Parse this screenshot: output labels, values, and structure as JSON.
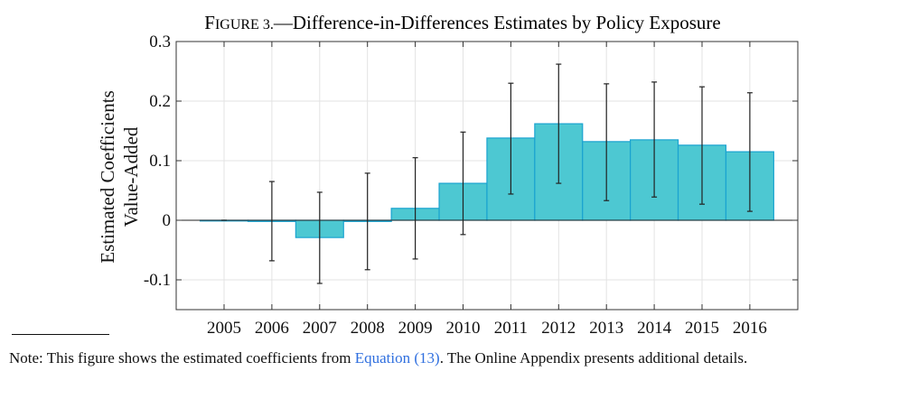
{
  "chart_data": {
    "type": "bar",
    "title_prefix": "Figure 3.",
    "title": "Difference-in-Differences Estimates by Policy Exposure",
    "xlabel": "",
    "ylabel": [
      "Estimated Coefficients",
      "Value-Added"
    ],
    "categories": [
      "2005",
      "2006",
      "2007",
      "2008",
      "2009",
      "2010",
      "2011",
      "2012",
      "2013",
      "2014",
      "2015",
      "2016"
    ],
    "values": [
      0.0,
      -0.002,
      -0.029,
      -0.002,
      0.02,
      0.062,
      0.138,
      0.162,
      0.132,
      0.135,
      0.126,
      0.115
    ],
    "ci_low": [
      0.0,
      -0.068,
      -0.106,
      -0.083,
      -0.065,
      -0.024,
      0.044,
      0.062,
      0.033,
      0.039,
      0.027,
      0.015
    ],
    "ci_high": [
      0.0,
      0.065,
      0.047,
      0.079,
      0.105,
      0.148,
      0.23,
      0.262,
      0.229,
      0.232,
      0.224,
      0.214
    ],
    "ylim": [
      -0.15,
      0.3
    ],
    "yticks": [
      -0.1,
      0,
      0.1,
      0.2,
      0.3
    ],
    "ytick_labels": [
      "-0.1",
      "0",
      "0.1",
      "0.2",
      "0.3"
    ],
    "grid": true,
    "bar_color": "#4dc8d2",
    "bar_edge_color": "#1aa3d0"
  },
  "note": {
    "prefix": "Note: This figure shows the estimated coefficients from ",
    "link": "Equation (13)",
    "suffix": ". The Online Appendix presents additional details."
  }
}
